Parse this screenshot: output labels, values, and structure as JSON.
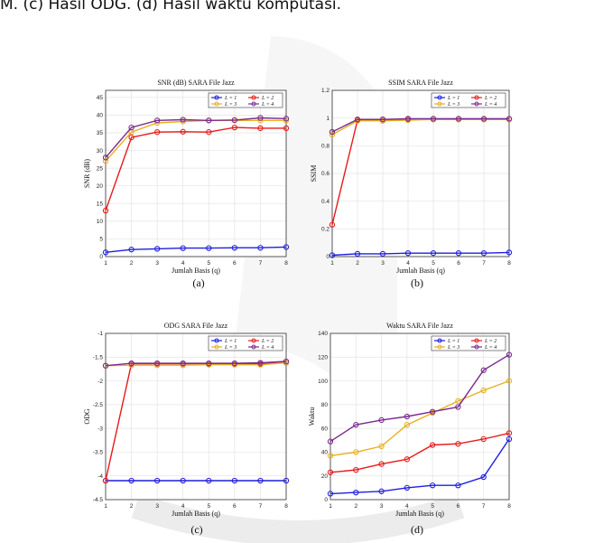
{
  "caption_fragment": "M. (c) Hasil ODG. (d) Hasil waktu komputasi.",
  "legend_items": [
    "L = 1",
    "L = 2",
    "L = 3",
    "L = 4"
  ],
  "colors": {
    "L1": "#1f1fe0",
    "L2": "#e81a1a",
    "L3": "#e8b020",
    "L4": "#7b2a8e"
  },
  "chart_data": [
    {
      "type": "line",
      "title": "SNR (dB) SARA File Jazz",
      "xlabel": "Jumlah Basis (q)",
      "ylabel": "SNR (dB)",
      "panel_label": "(a)",
      "x": [
        1,
        2,
        3,
        4,
        5,
        6,
        7,
        8
      ],
      "xlim": [
        1,
        8
      ],
      "ylim": [
        0,
        47
      ],
      "yticks": [
        0,
        5,
        10,
        15,
        20,
        25,
        30,
        35,
        40,
        45
      ],
      "ytick_labels": [
        "0",
        "5",
        "10",
        "15",
        "20",
        "25",
        "30",
        "35",
        "40",
        "45"
      ],
      "grid": true,
      "legend": "top",
      "series": [
        {
          "name": "L = 1",
          "values": [
            1.2,
            2.0,
            2.2,
            2.4,
            2.4,
            2.5,
            2.5,
            2.7
          ]
        },
        {
          "name": "L = 2",
          "values": [
            13.0,
            33.7,
            35.2,
            35.3,
            35.2,
            36.5,
            36.3,
            36.3
          ]
        },
        {
          "name": "L = 3",
          "values": [
            27.0,
            35.2,
            37.8,
            38.2,
            38.5,
            38.5,
            38.5,
            38.5
          ]
        },
        {
          "name": "L = 4",
          "values": [
            28.0,
            36.5,
            38.5,
            38.7,
            38.5,
            38.6,
            39.2,
            39.0
          ]
        }
      ]
    },
    {
      "type": "line",
      "title": "SSIM SARA File Jazz",
      "xlabel": "Jumlah Basis (q)",
      "ylabel": "SSIM",
      "panel_label": "(b)",
      "x": [
        1,
        2,
        3,
        4,
        5,
        6,
        7,
        8
      ],
      "xlim": [
        1,
        8
      ],
      "ylim": [
        0,
        1.2
      ],
      "yticks": [
        0,
        0.2,
        0.4,
        0.6,
        0.8,
        1.0,
        1.2
      ],
      "ytick_labels": [
        "0",
        "0.2",
        "0.4",
        "0.6",
        "0.8",
        "1",
        "1.2"
      ],
      "grid": true,
      "legend": "top-right",
      "series": [
        {
          "name": "L = 1",
          "values": [
            0.01,
            0.02,
            0.02,
            0.025,
            0.025,
            0.025,
            0.025,
            0.03
          ]
        },
        {
          "name": "L = 2",
          "values": [
            0.23,
            0.985,
            0.99,
            0.99,
            0.99,
            0.99,
            0.99,
            0.99
          ]
        },
        {
          "name": "L = 3",
          "values": [
            0.88,
            0.98,
            0.98,
            0.985,
            0.99,
            0.99,
            0.99,
            0.99
          ]
        },
        {
          "name": "L = 4",
          "values": [
            0.9,
            0.99,
            0.99,
            0.995,
            0.995,
            0.995,
            0.995,
            0.995
          ]
        }
      ]
    },
    {
      "type": "line",
      "title": "ODG SARA File Jazz",
      "xlabel": "Jumlah Basis (q)",
      "ylabel": "ODG",
      "panel_label": "(c)",
      "x": [
        1,
        2,
        3,
        4,
        5,
        6,
        7,
        8
      ],
      "xlim": [
        1,
        8
      ],
      "ylim": [
        -4.5,
        -1
      ],
      "yticks": [
        -4.5,
        -4,
        -3.5,
        -3,
        -2.5,
        -2,
        -1.5,
        -1
      ],
      "ytick_labels": [
        "-4.5",
        "-4",
        "-3.5",
        "-3",
        "-2.5",
        "-2",
        "-1.5",
        "-1"
      ],
      "grid": true,
      "legend": "top",
      "series": [
        {
          "name": "L = 1",
          "values": [
            -4.1,
            -4.1,
            -4.1,
            -4.1,
            -4.1,
            -4.1,
            -4.1,
            -4.1
          ]
        },
        {
          "name": "L = 2",
          "values": [
            -4.1,
            -1.64,
            -1.64,
            -1.64,
            -1.64,
            -1.64,
            -1.64,
            -1.62
          ]
        },
        {
          "name": "L = 3",
          "values": [
            -1.68,
            -1.67,
            -1.67,
            -1.67,
            -1.66,
            -1.66,
            -1.66,
            -1.62
          ]
        },
        {
          "name": "L = 4",
          "values": [
            -1.68,
            -1.63,
            -1.63,
            -1.63,
            -1.63,
            -1.63,
            -1.62,
            -1.59
          ]
        }
      ]
    },
    {
      "type": "line",
      "title": "Waktu SARA File Jazz",
      "xlabel": "Jumlah Basis (q)",
      "ylabel": "Waktu",
      "panel_label": "(d)",
      "x": [
        1,
        2,
        3,
        4,
        5,
        6,
        7,
        8
      ],
      "xlim": [
        1,
        8
      ],
      "ylim": [
        0,
        140
      ],
      "yticks": [
        0,
        20,
        40,
        60,
        80,
        100,
        120,
        140
      ],
      "ytick_labels": [
        "0",
        "20",
        "40",
        "60",
        "80",
        "100",
        "120",
        "140"
      ],
      "grid": true,
      "legend": "top",
      "series": [
        {
          "name": "L = 1",
          "values": [
            5,
            6,
            7,
            10,
            12,
            12,
            19,
            51
          ]
        },
        {
          "name": "L = 2",
          "values": [
            23,
            25,
            30,
            34,
            46,
            47,
            51,
            56
          ]
        },
        {
          "name": "L = 3",
          "values": [
            37,
            40,
            45,
            63,
            73,
            83,
            92,
            100
          ]
        },
        {
          "name": "L = 4",
          "values": [
            49,
            63,
            67,
            70,
            74,
            78,
            109,
            122
          ]
        }
      ]
    }
  ]
}
